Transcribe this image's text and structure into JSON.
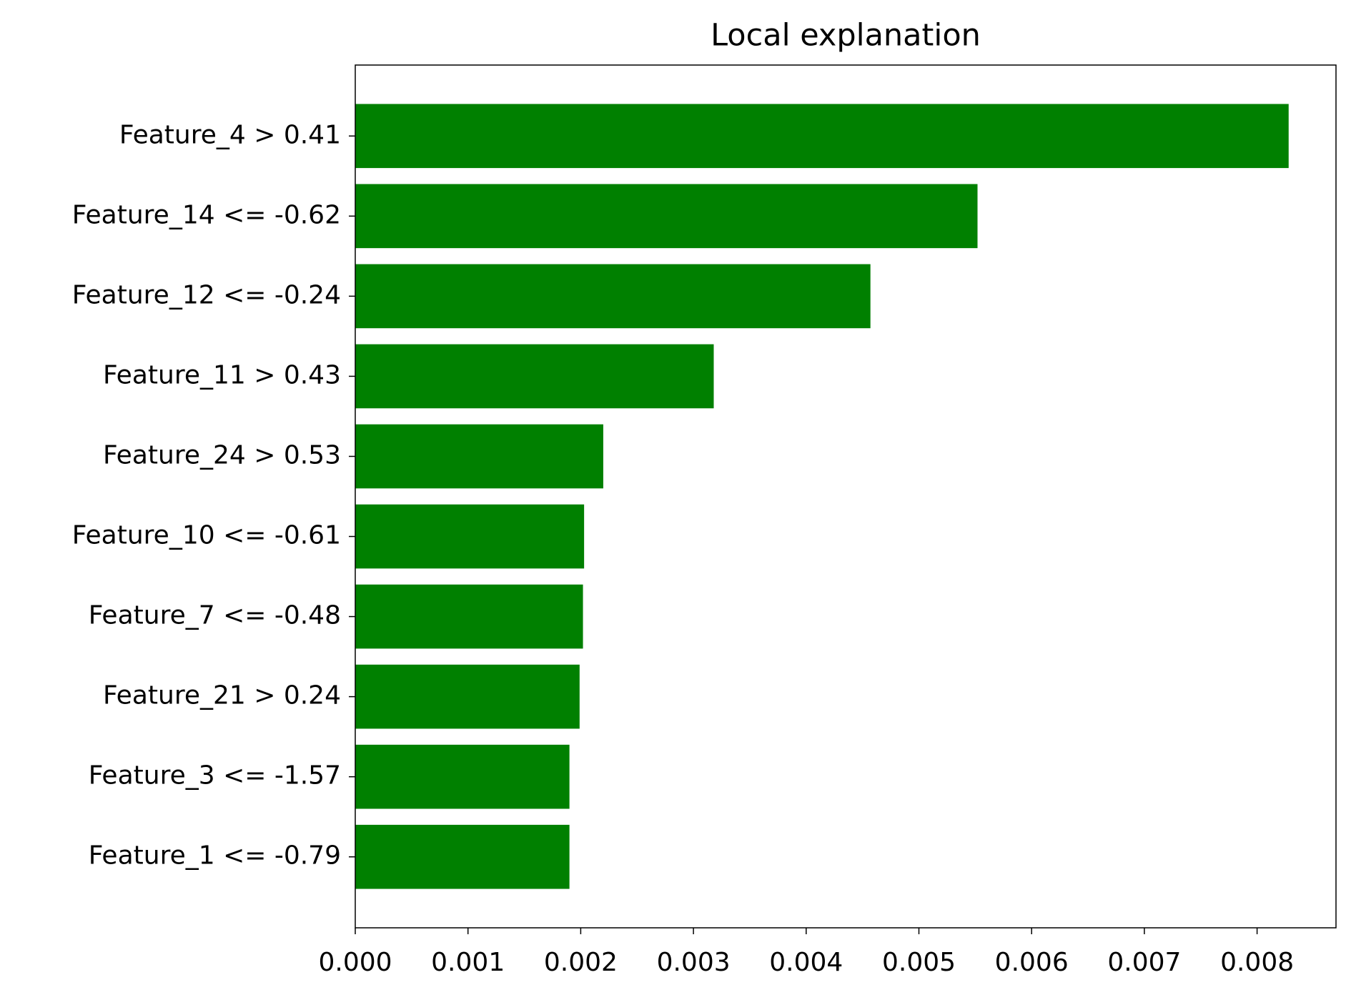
{
  "chart_data": {
    "type": "barh",
    "title": "Local explanation",
    "categories": [
      "Feature_4 > 0.41",
      "Feature_14 <= -0.62",
      "Feature_12 <= -0.24",
      "Feature_11 > 0.43",
      "Feature_24 > 0.53",
      "Feature_10 <= -0.61",
      "Feature_7 <= -0.48",
      "Feature_21 > 0.24",
      "Feature_3 <= -1.57",
      "Feature_1 <= -0.79"
    ],
    "values": [
      0.00828,
      0.00552,
      0.00457,
      0.00318,
      0.0022,
      0.00203,
      0.00202,
      0.00199,
      0.0019,
      0.0019
    ],
    "color": "#008000",
    "xlim": [
      0,
      0.0087
    ],
    "xticks": [
      {
        "value": 0,
        "label": "0.000"
      },
      0.001,
      0.002,
      0.003,
      0.004,
      0.005,
      0.006,
      0.007,
      0.008
    ]
  }
}
